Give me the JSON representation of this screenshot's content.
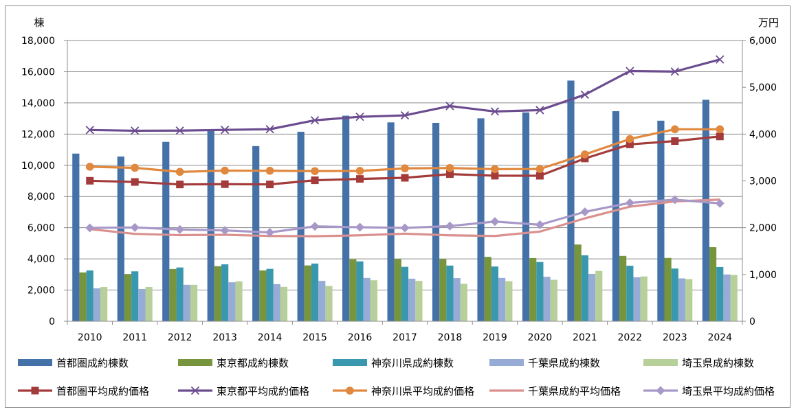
{
  "chart_data": {
    "type": "bar",
    "title": "",
    "y_left_label": "棟",
    "y_right_label": "万円",
    "y_left_lim": [
      0,
      18000
    ],
    "y_left_ticks": [
      "0",
      "2,000",
      "4,000",
      "6,000",
      "8,000",
      "10,000",
      "12,000",
      "14,000",
      "16,000",
      "18,000"
    ],
    "y_right_lim": [
      0,
      6000
    ],
    "y_right_ticks": [
      "0",
      "1,000",
      "2,000",
      "3,000",
      "4,000",
      "5,000",
      "6,000"
    ],
    "grid": true,
    "legend_position": "bottom",
    "categories": [
      "2010",
      "2011",
      "2012",
      "2013",
      "2014",
      "2015",
      "2016",
      "2017",
      "2018",
      "2019",
      "2020",
      "2021",
      "2022",
      "2023",
      "2024"
    ],
    "bar_series": [
      {
        "name": "首都圏成約棟数",
        "color": "#4472a8",
        "values": [
          10750,
          10560,
          11500,
          12300,
          11230,
          12150,
          13180,
          12750,
          12720,
          13010,
          13390,
          15430,
          13470,
          12860,
          14200
        ]
      },
      {
        "name": "東京都成約棟数",
        "color": "#76953c",
        "values": [
          3130,
          3030,
          3350,
          3530,
          3260,
          3580,
          3970,
          3990,
          3990,
          4130,
          4050,
          4920,
          4190,
          4060,
          4750
        ]
      },
      {
        "name": "神奈川県成約棟数",
        "color": "#3a98ae",
        "values": [
          3260,
          3200,
          3450,
          3650,
          3360,
          3700,
          3840,
          3490,
          3570,
          3510,
          3800,
          4230,
          3560,
          3380,
          3480
        ]
      },
      {
        "name": "千葉県成約棟数",
        "color": "#96acd6",
        "values": [
          2110,
          2070,
          2340,
          2500,
          2380,
          2590,
          2780,
          2730,
          2770,
          2780,
          2850,
          3040,
          2820,
          2750,
          3000
        ]
      },
      {
        "name": "埼玉県成約棟数",
        "color": "#b7d09a",
        "values": [
          2200,
          2200,
          2340,
          2560,
          2210,
          2260,
          2630,
          2590,
          2400,
          2570,
          2660,
          3230,
          2870,
          2700,
          2970
        ]
      }
    ],
    "line_series": [
      {
        "name": "首都圏平均成約価格",
        "color": "#a33b3b",
        "marker": "square",
        "values": [
          3003,
          2977,
          2924,
          2930,
          2925,
          3013,
          3042,
          3066,
          3145,
          3111,
          3110,
          3479,
          3780,
          3851,
          3950
        ]
      },
      {
        "name": "東京都平均成約価格",
        "color": "#6b4c8f",
        "marker": "x",
        "values": [
          4088,
          4072,
          4075,
          4090,
          4104,
          4295,
          4370,
          4400,
          4600,
          4483,
          4512,
          4842,
          5347,
          5336,
          5595
        ]
      },
      {
        "name": "神奈川県平均成約価格",
        "color": "#e0883e",
        "marker": "circle",
        "values": [
          3303,
          3279,
          3193,
          3219,
          3216,
          3209,
          3213,
          3268,
          3275,
          3251,
          3255,
          3566,
          3895,
          4103,
          4103
        ]
      },
      {
        "name": "千葉県成約平均価格",
        "color": "#d9908e",
        "marker": "none",
        "values": [
          1969,
          1868,
          1841,
          1848,
          1823,
          1817,
          1837,
          1871,
          1837,
          1823,
          1916,
          2199,
          2449,
          2562,
          2600
        ]
      },
      {
        "name": "埼玉県平均成約価格",
        "color": "#a898c8",
        "marker": "diamond",
        "values": [
          1996,
          2004,
          1962,
          1941,
          1899,
          2028,
          2010,
          1995,
          2035,
          2131,
          2063,
          2338,
          2530,
          2599,
          2520
        ]
      }
    ]
  }
}
